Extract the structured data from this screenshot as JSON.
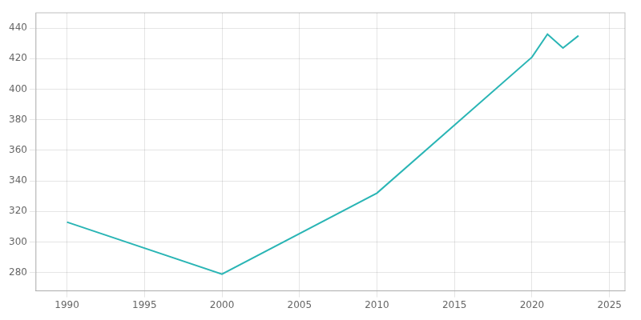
{
  "chart_data": {
    "type": "line",
    "x": [
      1990,
      2000,
      2010,
      2020,
      2021,
      2022,
      2023
    ],
    "values": [
      313,
      279,
      332,
      421,
      436,
      427,
      435
    ],
    "color": "#2ab5b5",
    "xlim": [
      1988,
      2026
    ],
    "xticks": [
      1990,
      1995,
      2000,
      2005,
      2010,
      2015,
      2020,
      2025
    ],
    "ylim": [
      268,
      450
    ],
    "yticks": [
      280,
      300,
      320,
      340,
      360,
      380,
      400,
      420,
      440
    ],
    "grid": true
  }
}
